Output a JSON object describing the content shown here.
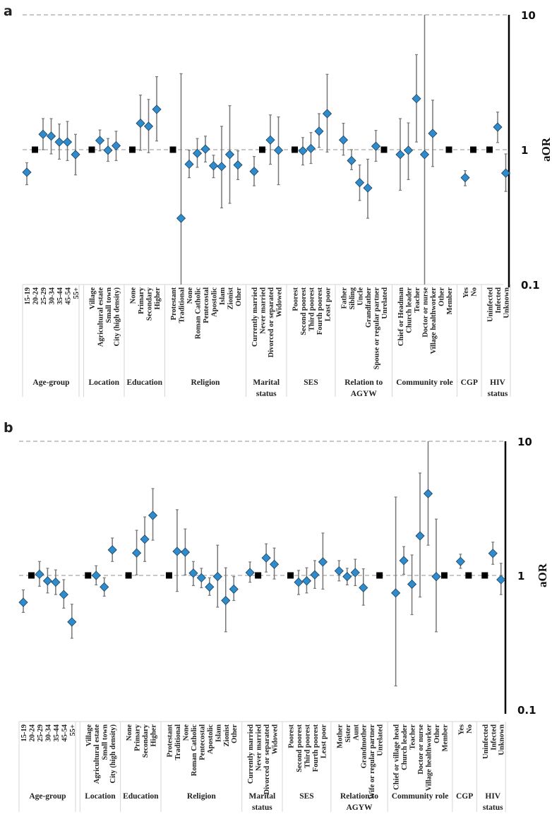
{
  "colors": {
    "marker": "#2E8BCC",
    "marker_edge": "#1b3f5c",
    "reference": "#000000",
    "errorbar": "#777777",
    "gridline": "#a8a8a8"
  },
  "chart_data": [
    {
      "type": "scatter",
      "panel": "a",
      "ylabel": "aOR",
      "yscale": "log",
      "ylim": [
        0.1,
        10
      ],
      "yticks": [
        "10",
        "1",
        "0.1"
      ],
      "gridlines": [
        10,
        1
      ],
      "groups": [
        {
          "name": [
            "Age-group"
          ],
          "items": [
            {
              "label": "15-19",
              "or": 0.68,
              "lo": 0.55,
              "hi": 0.8
            },
            {
              "label": "20-24",
              "ref": true
            },
            {
              "label": "25-29",
              "or": 1.3,
              "lo": 1.0,
              "hi": 1.7
            },
            {
              "label": "30-34",
              "or": 1.26,
              "lo": 0.93,
              "hi": 1.7
            },
            {
              "label": "35-44",
              "or": 1.14,
              "lo": 0.85,
              "hi": 1.55
            },
            {
              "label": "45-54",
              "or": 1.14,
              "lo": 0.83,
              "hi": 1.62
            },
            {
              "label": "55+",
              "or": 0.92,
              "lo": 0.65,
              "hi": 1.3
            }
          ]
        },
        {
          "name": [
            "Location"
          ],
          "items": [
            {
              "label": "Village",
              "ref": true
            },
            {
              "label": "Agricultural estate",
              "or": 1.17,
              "lo": 0.98,
              "hi": 1.4
            },
            {
              "label": "Small town",
              "or": 0.99,
              "lo": 0.82,
              "hi": 1.21
            },
            {
              "label": "City (high density)",
              "or": 1.07,
              "lo": 0.83,
              "hi": 1.37
            }
          ]
        },
        {
          "name": [
            "Education"
          ],
          "items": [
            {
              "label": "None",
              "ref": true
            },
            {
              "label": "Primary",
              "or": 1.57,
              "lo": 0.99,
              "hi": 2.54
            },
            {
              "label": "Secondary",
              "or": 1.49,
              "lo": 0.95,
              "hi": 2.36
            },
            {
              "label": "Higher",
              "or": 1.99,
              "lo": 1.16,
              "hi": 3.48
            }
          ]
        },
        {
          "name": [
            "Religion"
          ],
          "items": [
            {
              "label": "Protestant",
              "ref": true
            },
            {
              "label": "Traditional",
              "or": 0.31,
              "lo": 0.1,
              "hi": 3.66
            },
            {
              "label": "None",
              "or": 0.78,
              "lo": 0.62,
              "hi": 0.99
            },
            {
              "label": "Roman Catholic",
              "or": 0.94,
              "lo": 0.74,
              "hi": 1.21
            },
            {
              "label": "Pentecostal",
              "or": 1.01,
              "lo": 0.81,
              "hi": 1.26
            },
            {
              "label": "Apostolic",
              "or": 0.76,
              "lo": 0.62,
              "hi": 0.91
            },
            {
              "label": "Islam",
              "or": 0.75,
              "lo": 0.37,
              "hi": 1.49
            },
            {
              "label": "Zionist",
              "or": 0.92,
              "lo": 0.4,
              "hi": 2.12
            },
            {
              "label": "Other",
              "or": 0.77,
              "lo": 0.6,
              "hi": 0.98
            }
          ]
        },
        {
          "name": [
            "Marital",
            "status"
          ],
          "items": [
            {
              "label": "Currently married",
              "or": 0.69,
              "lo": 0.54,
              "hi": 0.89
            },
            {
              "label": "Never married",
              "ref": true
            },
            {
              "label": "Divorced or separated",
              "or": 1.18,
              "lo": 0.78,
              "hi": 1.81
            },
            {
              "label": "Widowed",
              "or": 0.99,
              "lo": 0.55,
              "hi": 1.75
            }
          ]
        },
        {
          "name": [
            "SES"
          ],
          "items": [
            {
              "label": "Poorest",
              "ref": true
            },
            {
              "label": "Second poorest",
              "or": 0.98,
              "lo": 0.77,
              "hi": 1.23
            },
            {
              "label": "Third poorest",
              "or": 1.02,
              "lo": 0.79,
              "hi": 1.34
            },
            {
              "label": "Fourth poorest",
              "or": 1.37,
              "lo": 1.04,
              "hi": 1.85
            },
            {
              "label": "Least poor",
              "or": 1.85,
              "lo": 0.96,
              "hi": 3.62
            }
          ]
        },
        {
          "name": [
            "Relation to",
            "AGYW"
          ],
          "items": [
            {
              "label": "Father",
              "or": 1.18,
              "lo": 0.91,
              "hi": 1.57
            },
            {
              "label": "Sibling",
              "or": 0.83,
              "lo": 0.71,
              "hi": 1.0
            },
            {
              "label": "Uncle",
              "or": 0.57,
              "lo": 0.42,
              "hi": 0.77
            },
            {
              "label": "Grandfather",
              "or": 0.52,
              "lo": 0.31,
              "hi": 0.85
            },
            {
              "label": "Spouse or regular partner",
              "or": 1.06,
              "lo": 0.82,
              "hi": 1.39
            },
            {
              "label": "Unrelated",
              "ref": true
            }
          ]
        },
        {
          "name": [
            "Community role"
          ],
          "items": [
            {
              "label": "Chief or Headman",
              "or": 0.92,
              "lo": 0.5,
              "hi": 1.7
            },
            {
              "label": "Church leader",
              "or": 0.99,
              "lo": 0.6,
              "hi": 1.58
            },
            {
              "label": "Teacher",
              "or": 2.39,
              "lo": 1.14,
              "hi": 5.07
            },
            {
              "label": "Doctor or nurse",
              "or": 0.92,
              "lo": 0.1,
              "hi": 10
            },
            {
              "label": "Village healthworker",
              "or": 1.32,
              "lo": 0.75,
              "hi": 2.33
            },
            {
              "label": "Other"
            },
            {
              "label": "Member",
              "ref": true
            }
          ]
        },
        {
          "name": [
            "CGP"
          ],
          "items": [
            {
              "label": "Yes",
              "or": 0.62,
              "lo": 0.54,
              "hi": 0.7
            },
            {
              "label": "No",
              "ref": true
            }
          ]
        },
        {
          "name": [
            "HIV",
            "status"
          ],
          "items": [
            {
              "label": "Uninfected",
              "ref": true
            },
            {
              "label": "Infected",
              "or": 1.47,
              "lo": 1.13,
              "hi": 1.9
            },
            {
              "label": "Unknown",
              "or": 0.67,
              "lo": 0.49,
              "hi": 0.93
            }
          ]
        }
      ]
    },
    {
      "type": "scatter",
      "panel": "b",
      "ylabel": "aOR",
      "yscale": "log",
      "ylim": [
        0.1,
        10
      ],
      "yticks": [
        "10",
        "1",
        "0.1"
      ],
      "gridlines": [
        10,
        1
      ],
      "groups": [
        {
          "name": [
            "Age-group"
          ],
          "items": [
            {
              "label": "15-19",
              "or": 0.63,
              "lo": 0.53,
              "hi": 0.78
            },
            {
              "label": "20-24",
              "ref": true
            },
            {
              "label": "25-29",
              "or": 1.02,
              "lo": 0.83,
              "hi": 1.27
            },
            {
              "label": "30-34",
              "or": 0.91,
              "lo": 0.74,
              "hi": 1.13
            },
            {
              "label": "35-44",
              "or": 0.89,
              "lo": 0.72,
              "hi": 1.1
            },
            {
              "label": "45-54",
              "or": 0.72,
              "lo": 0.57,
              "hi": 0.93
            },
            {
              "label": "55+",
              "or": 0.45,
              "lo": 0.34,
              "hi": 0.61
            }
          ]
        },
        {
          "name": [
            "Location"
          ],
          "items": [
            {
              "label": "Village",
              "ref": true
            },
            {
              "label": "Agricultural estate",
              "or": 1.0,
              "lo": 0.85,
              "hi": 1.18
            },
            {
              "label": "Small town",
              "or": 0.82,
              "lo": 0.7,
              "hi": 0.96
            },
            {
              "label": "City (high density)",
              "or": 1.55,
              "lo": 1.27,
              "hi": 1.9
            }
          ]
        },
        {
          "name": [
            "Education"
          ],
          "items": [
            {
              "label": "None",
              "ref": true
            },
            {
              "label": "Primary",
              "or": 1.47,
              "lo": 1.01,
              "hi": 2.17
            },
            {
              "label": "Secondary",
              "or": 1.86,
              "lo": 1.27,
              "hi": 2.73
            },
            {
              "label": "Higher",
              "or": 2.8,
              "lo": 1.83,
              "hi": 4.44
            }
          ]
        },
        {
          "name": [
            "Religion"
          ],
          "items": [
            {
              "label": "Protestant",
              "ref": true
            },
            {
              "label": "Traditional",
              "or": 1.51,
              "lo": 0.76,
              "hi": 3.09
            },
            {
              "label": "None",
              "or": 1.49,
              "lo": 1.01,
              "hi": 2.22
            },
            {
              "label": "Roman Catholic",
              "or": 1.04,
              "lo": 0.84,
              "hi": 1.27
            },
            {
              "label": "Pentecostal",
              "or": 0.96,
              "lo": 0.81,
              "hi": 1.13
            },
            {
              "label": "Apostolic",
              "or": 0.82,
              "lo": 0.71,
              "hi": 0.96
            },
            {
              "label": "Islam",
              "or": 0.98,
              "lo": 0.58,
              "hi": 1.68
            },
            {
              "label": "Zionist",
              "or": 0.65,
              "lo": 0.38,
              "hi": 1.14
            },
            {
              "label": "Other",
              "or": 0.79,
              "lo": 0.65,
              "hi": 0.98
            }
          ]
        },
        {
          "name": [
            "Marital",
            "status"
          ],
          "items": [
            {
              "label": "Currently married",
              "or": 1.05,
              "lo": 0.89,
              "hi": 1.26
            },
            {
              "label": "Never married",
              "ref": true
            },
            {
              "label": "Divorced or separated",
              "or": 1.35,
              "lo": 1.06,
              "hi": 1.72
            },
            {
              "label": "Widowed",
              "or": 1.21,
              "lo": 0.94,
              "hi": 1.6
            }
          ]
        },
        {
          "name": [
            "SES"
          ],
          "items": [
            {
              "label": "Poorest",
              "ref": true
            },
            {
              "label": "Second poorest",
              "or": 0.89,
              "lo": 0.72,
              "hi": 1.09
            },
            {
              "label": "Third poorest",
              "or": 0.91,
              "lo": 0.74,
              "hi": 1.14
            },
            {
              "label": "Fourth poorest",
              "or": 1.01,
              "lo": 0.8,
              "hi": 1.29
            },
            {
              "label": "Least poor",
              "or": 1.26,
              "lo": 0.79,
              "hi": 2.07
            }
          ]
        },
        {
          "name": [
            "Relation to",
            "AGYW"
          ],
          "items": [
            {
              "label": "Mother",
              "or": 1.08,
              "lo": 0.91,
              "hi": 1.29
            },
            {
              "label": "Sister",
              "or": 0.98,
              "lo": 0.85,
              "hi": 1.13
            },
            {
              "label": "Aunt",
              "or": 1.05,
              "lo": 0.84,
              "hi": 1.32
            },
            {
              "label": "Grandmother",
              "or": 0.81,
              "lo": 0.6,
              "hi": 1.12
            },
            {
              "label": "Wife or regular partner"
            },
            {
              "label": "Unrelated",
              "ref": true
            }
          ]
        },
        {
          "name": [
            "Community role"
          ],
          "items": [
            {
              "label": "Chief or village head",
              "or": 0.74,
              "lo": 0.15,
              "hi": 3.84
            },
            {
              "label": "Church leader",
              "or": 1.29,
              "lo": 1.02,
              "hi": 1.64
            },
            {
              "label": "Teacher",
              "or": 0.86,
              "lo": 0.51,
              "hi": 1.42
            },
            {
              "label": "Doctor or nurse",
              "or": 1.97,
              "lo": 0.69,
              "hi": 5.8
            },
            {
              "label": "Village healthworker",
              "or": 4.07,
              "lo": 1.68,
              "hi": 10
            },
            {
              "label": "Other",
              "or": 0.98,
              "lo": 0.38,
              "hi": 2.63
            },
            {
              "label": "Member",
              "ref": true
            }
          ]
        },
        {
          "name": [
            "CGP"
          ],
          "items": [
            {
              "label": "Yes",
              "or": 1.27,
              "lo": 1.13,
              "hi": 1.44
            },
            {
              "label": "No",
              "ref": true
            }
          ]
        },
        {
          "name": [
            "HIV",
            "status"
          ],
          "items": [
            {
              "label": "Uninfected",
              "ref": true
            },
            {
              "label": "Infected",
              "or": 1.46,
              "lo": 1.21,
              "hi": 1.77
            },
            {
              "label": "Unknown",
              "or": 0.93,
              "lo": 0.72,
              "hi": 1.23
            }
          ]
        }
      ]
    }
  ]
}
